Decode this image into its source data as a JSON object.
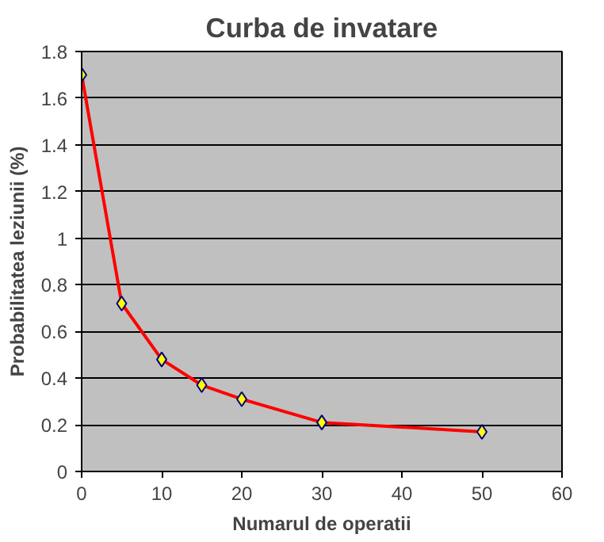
{
  "chart_data": {
    "type": "line",
    "title": "Curba de invatare",
    "xlabel": "Numarul de operatii",
    "ylabel": "Probabilitatea leziunii (%)",
    "x": [
      0,
      5,
      10,
      15,
      20,
      30,
      50
    ],
    "series": [
      {
        "color": "#ff0000",
        "values": [
          1.7,
          0.72,
          0.48,
          0.37,
          0.31,
          0.21,
          0.17
        ]
      }
    ],
    "xlim": [
      0,
      60
    ],
    "xticks": [
      0,
      10,
      20,
      30,
      40,
      50,
      60
    ],
    "ylim": [
      0,
      1.8
    ],
    "yticks": [
      0,
      0.2,
      0.4,
      0.6,
      0.8,
      1,
      1.2,
      1.4,
      1.6,
      1.8
    ],
    "grid": "y",
    "marker": "diamond",
    "line_style": "solid"
  }
}
